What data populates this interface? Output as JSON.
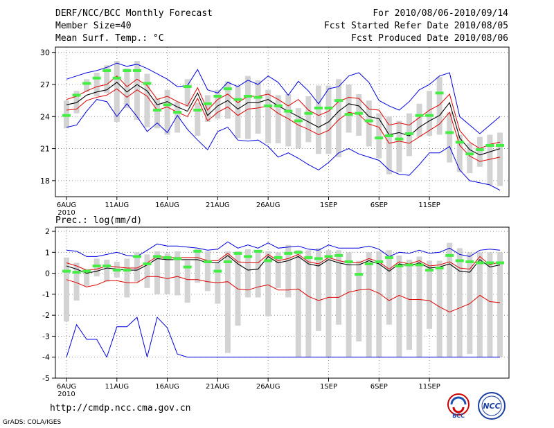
{
  "header": {
    "title": "DERF/NCC/BCC Monthly Forecast",
    "member_size": "Member Size=40",
    "variable1": "Mean Surf. Temp.: °C",
    "period": "For 2010/08/06-2010/09/14",
    "started": "Fcst Started Refer Date 2010/08/05",
    "produced": "Fcst Produced Date 2010/08/06"
  },
  "panel2_label": "Prec.: log(mm/d)",
  "footer": {
    "url": "http://cmdp.ncc.cma.gov.cn",
    "grads": "GrADS: COLA/IGES",
    "logo1_text": "BCC",
    "logo2_text": "NCC"
  },
  "colors": {
    "max_min": "#0000dd",
    "spread": "#dd0000",
    "mean": "#000000",
    "box": "#d3d3d3",
    "median": "#44ee44"
  },
  "chart_data": [
    {
      "type": "line",
      "title": "Mean Surf. Temp.: °C",
      "x_start_label": "6AUG",
      "x_year_label": "2010",
      "x_ticks": [
        "6AUG",
        "11AUG",
        "16AUG",
        "21AUG",
        "26AUG",
        "1SEP",
        "6SEP",
        "11SEP"
      ],
      "x_tick_days": [
        0,
        5,
        10,
        15,
        20,
        26,
        31,
        36
      ],
      "ylim": [
        16.5,
        30.5
      ],
      "yticks": [
        18,
        21,
        24,
        27,
        30
      ],
      "series": [
        {
          "name": "max",
          "values": [
            27.5,
            27.8,
            28.1,
            28.3,
            28.6,
            29.0,
            28.7,
            28.9,
            28.5,
            28.0,
            27.5,
            26.8,
            26.9,
            28.4,
            26.5,
            26.2,
            27.2,
            26.8,
            27.4,
            27.0,
            27.8,
            27.2,
            26.0,
            27.3,
            26.4,
            25.2,
            26.6,
            26.8,
            27.8,
            28.1,
            27.2,
            25.5,
            25.0,
            24.6,
            25.4,
            26.5,
            27.0,
            27.8,
            28.1,
            24.0,
            23.2,
            22.4,
            23.2,
            24.0
          ]
        },
        {
          "name": "upper_spread",
          "values": [
            25.6,
            25.9,
            26.4,
            26.8,
            27.0,
            27.8,
            26.8,
            27.5,
            26.9,
            25.6,
            25.9,
            25.4,
            25.0,
            26.7,
            24.6,
            25.6,
            26.1,
            25.3,
            25.9,
            25.9,
            26.1,
            25.6,
            25.0,
            25.6,
            24.6,
            24.1,
            24.5,
            25.4,
            25.8,
            25.7,
            24.7,
            24.6,
            23.2,
            23.4,
            23.2,
            23.9,
            24.6,
            25.1,
            26.1,
            22.7,
            21.6,
            21.0,
            21.4,
            21.6
          ]
        },
        {
          "name": "mean",
          "values": [
            25.1,
            25.3,
            26.0,
            26.3,
            26.5,
            27.2,
            26.3,
            27.0,
            26.4,
            25.1,
            25.4,
            24.9,
            24.5,
            26.2,
            24.1,
            25.0,
            25.5,
            24.7,
            25.3,
            25.3,
            25.6,
            25.0,
            24.5,
            24.0,
            23.5,
            23.0,
            23.5,
            24.5,
            25.2,
            25.0,
            24.0,
            23.8,
            22.3,
            22.5,
            22.2,
            23.0,
            23.6,
            24.1,
            25.3,
            22.0,
            20.9,
            20.4,
            20.7,
            21.0
          ]
        },
        {
          "name": "lower_spread",
          "values": [
            24.6,
            24.7,
            25.5,
            25.8,
            26.0,
            26.6,
            25.8,
            26.5,
            25.9,
            24.6,
            24.9,
            24.4,
            24.0,
            25.7,
            23.6,
            24.4,
            24.9,
            24.1,
            24.7,
            24.8,
            25.0,
            24.3,
            23.8,
            23.2,
            22.8,
            22.3,
            22.7,
            23.7,
            24.4,
            24.2,
            23.3,
            23.0,
            21.5,
            21.7,
            21.5,
            22.1,
            22.7,
            23.3,
            24.4,
            21.3,
            20.3,
            19.8,
            20.0,
            20.2
          ]
        },
        {
          "name": "min",
          "values": [
            23.0,
            23.2,
            24.5,
            25.6,
            25.4,
            24.0,
            25.2,
            24.0,
            22.6,
            23.4,
            22.5,
            24.1,
            22.8,
            21.8,
            20.9,
            22.6,
            23.0,
            21.8,
            21.7,
            21.8,
            21.2,
            20.2,
            20.6,
            20.1,
            19.5,
            19.0,
            19.7,
            20.6,
            21.0,
            20.5,
            20.2,
            19.9,
            19.0,
            18.6,
            18.5,
            19.5,
            20.6,
            20.6,
            21.2,
            19.0,
            18.0,
            17.8,
            17.6,
            17.1
          ]
        },
        {
          "name": "median",
          "values": [
            24.1,
            26.0,
            27.1,
            27.6,
            28.3,
            27.6,
            28.3,
            28.3,
            27.1,
            24.6,
            25.1,
            24.4,
            26.8,
            24.6,
            25.2,
            25.9,
            26.6,
            25.6,
            25.9,
            25.8,
            25.0,
            25.0,
            24.5,
            23.6,
            24.3,
            24.8,
            24.8,
            25.5,
            24.2,
            24.3,
            23.6,
            22.0,
            22.2,
            21.9,
            22.4,
            24.1,
            24.1,
            26.2,
            22.5,
            21.6,
            20.5,
            20.9,
            21.3,
            21.3
          ]
        },
        {
          "name": "box_high",
          "values": [
            25.5,
            26.4,
            27.5,
            28.1,
            28.8,
            29.2,
            28.5,
            29.2,
            28.0,
            25.7,
            26.5,
            25.4,
            27.5,
            25.3,
            26.0,
            26.5,
            27.3,
            26.9,
            27.8,
            27.4,
            26.5,
            26.0,
            26.1,
            24.8,
            25.9,
            26.9,
            26.9,
            27.5,
            27.0,
            26.1,
            25.5,
            24.3,
            24.0,
            23.6,
            24.3,
            25.2,
            26.4,
            27.7,
            24.4,
            22.3,
            21.5,
            22.1,
            22.3,
            22.5
          ]
        },
        {
          "name": "box_low",
          "values": [
            22.9,
            24.3,
            26.3,
            25.9,
            26.2,
            23.5,
            24.8,
            23.7,
            23.0,
            22.9,
            22.3,
            22.5,
            24.9,
            22.2,
            23.5,
            23.8,
            23.8,
            22.0,
            21.9,
            22.4,
            21.5,
            21.5,
            21.2,
            21.0,
            21.6,
            20.5,
            20.5,
            20.2,
            22.5,
            22.2,
            21.2,
            20.1,
            18.6,
            18.8,
            20.3,
            22.1,
            22.2,
            22.3,
            19.7,
            18.8,
            18.7,
            19.3,
            17.6,
            17.5
          ]
        }
      ]
    },
    {
      "type": "line",
      "title": "Prec.: log(mm/d)",
      "x_start_label": "6AUG",
      "x_year_label": "2010",
      "x_ticks": [
        "6AUG",
        "11AUG",
        "16AUG",
        "21AUG",
        "26AUG",
        "1SEP",
        "6SEP",
        "11SEP"
      ],
      "x_tick_days": [
        0,
        5,
        10,
        15,
        20,
        26,
        31,
        36
      ],
      "ylim": [
        -5,
        2.2
      ],
      "yticks": [
        -5,
        -4,
        -3,
        -2,
        -1,
        0,
        1,
        2
      ],
      "series": [
        {
          "name": "max",
          "values": [
            1.1,
            1.05,
            0.8,
            0.8,
            0.9,
            1.0,
            0.85,
            0.8,
            1.1,
            1.4,
            1.3,
            1.3,
            1.25,
            1.2,
            1.1,
            1.15,
            1.5,
            1.2,
            1.35,
            1.2,
            1.45,
            1.2,
            1.25,
            1.3,
            1.15,
            1.1,
            1.35,
            1.2,
            1.2,
            1.2,
            1.3,
            1.15,
            0.8,
            1.0,
            0.95,
            1.1,
            0.95,
            1.0,
            1.2,
            0.9,
            0.8,
            1.1,
            1.15,
            1.1
          ]
        },
        {
          "name": "upper_spread",
          "values": [
            0.5,
            0.35,
            0.15,
            0.2,
            0.35,
            0.3,
            0.25,
            0.25,
            0.5,
            0.8,
            0.75,
            0.75,
            0.75,
            0.75,
            0.6,
            0.6,
            0.95,
            0.55,
            0.5,
            0.5,
            0.9,
            0.6,
            0.7,
            0.9,
            0.55,
            0.45,
            0.75,
            0.6,
            0.5,
            0.5,
            0.7,
            0.55,
            0.2,
            0.55,
            0.45,
            0.6,
            0.35,
            0.4,
            0.55,
            0.25,
            0.2,
            0.8,
            0.4,
            0.55
          ]
        },
        {
          "name": "mean",
          "values": [
            0.35,
            0.2,
            0.0,
            0.1,
            0.25,
            0.2,
            0.15,
            0.15,
            0.4,
            0.7,
            0.65,
            0.65,
            0.65,
            0.65,
            0.5,
            0.5,
            0.85,
            0.45,
            0.15,
            0.2,
            0.8,
            0.5,
            0.6,
            0.8,
            0.45,
            0.35,
            0.65,
            0.5,
            0.4,
            0.4,
            0.6,
            0.45,
            0.1,
            0.45,
            0.35,
            0.5,
            0.25,
            0.3,
            0.45,
            0.1,
            0.05,
            0.65,
            0.3,
            0.4
          ]
        },
        {
          "name": "lower_spread",
          "values": [
            -0.3,
            -0.45,
            -0.65,
            -0.55,
            -0.35,
            -0.35,
            -0.45,
            -0.45,
            -0.15,
            -0.15,
            -0.25,
            -0.15,
            -0.3,
            -0.3,
            -0.4,
            -0.45,
            -0.4,
            -0.75,
            -0.8,
            -0.65,
            -0.55,
            -0.8,
            -0.8,
            -0.75,
            -1.1,
            -1.3,
            -1.15,
            -1.15,
            -0.9,
            -0.8,
            -0.75,
            -0.95,
            -1.3,
            -1.05,
            -1.25,
            -1.25,
            -1.3,
            -1.6,
            -1.85,
            -1.65,
            -1.45,
            -1.05,
            -1.35,
            -1.4
          ]
        },
        {
          "name": "min",
          "values": [
            -4.0,
            -2.45,
            -3.15,
            -3.15,
            -4.0,
            -2.55,
            -2.55,
            -2.1,
            -4.0,
            -2.1,
            -2.6,
            -3.85,
            -4.0,
            -4.0,
            -4.0,
            -4.0,
            -4.0,
            -4.0,
            -4.0,
            -4.0,
            -4.0,
            -4.0,
            -4.0,
            -4.0,
            -4.0,
            -4.0,
            -4.0,
            -4.0,
            -4.0,
            -4.0,
            -4.0,
            -4.0,
            -4.0,
            -4.0,
            -4.0,
            -4.0,
            -4.0,
            -4.0,
            -4.0,
            -4.0,
            -4.0,
            -4.0,
            -4.0,
            -4.0
          ]
        },
        {
          "name": "median",
          "values": [
            0.1,
            0.05,
            0.1,
            0.35,
            0.35,
            0.15,
            0.15,
            0.8,
            0.45,
            0.8,
            0.75,
            0.7,
            0.3,
            1.05,
            0.55,
            0.1,
            0.55,
            0.95,
            0.8,
            1.05,
            0.6,
            0.75,
            0.95,
            1.0,
            0.75,
            0.7,
            0.8,
            0.85,
            0.55,
            -0.05,
            0.45,
            0.55,
            0.75,
            0.35,
            0.4,
            0.4,
            0.15,
            0.25,
            0.85,
            0.6,
            0.55,
            0.5,
            0.5,
            0.5
          ]
        },
        {
          "name": "box_high",
          "values": [
            0.75,
            0.5,
            0.2,
            0.7,
            0.65,
            0.55,
            0.7,
            1.0,
            0.9,
            1.05,
            0.95,
            1.05,
            0.6,
            1.15,
            1.05,
            0.5,
            1.05,
            1.05,
            1.15,
            1.1,
            1.05,
            1.0,
            1.35,
            1.1,
            1.1,
            1.2,
            1.1,
            1.1,
            1.0,
            0.6,
            1.0,
            1.05,
            1.1,
            0.85,
            0.65,
            0.8,
            0.6,
            0.6,
            1.45,
            1.2,
            1.0,
            1.0,
            1.0,
            1.0
          ]
        },
        {
          "name": "box_low",
          "values": [
            -2.3,
            -1.3,
            -0.6,
            -0.15,
            -0.4,
            -0.2,
            -1.15,
            -0.4,
            -0.7,
            -1.0,
            -1.0,
            -1.05,
            -1.4,
            -0.45,
            -0.85,
            -1.45,
            -3.8,
            -2.5,
            -1.15,
            -1.15,
            -2.05,
            -0.7,
            -1.15,
            -4.0,
            -4.0,
            -2.75,
            -4.0,
            -2.45,
            -4.0,
            -3.25,
            -4.0,
            -4.0,
            -2.45,
            -4.0,
            -3.65,
            -4.0,
            -2.65,
            -4.0,
            -4.0,
            -4.0,
            -3.85,
            -4.0,
            -4.0,
            -4.0
          ]
        }
      ]
    }
  ]
}
